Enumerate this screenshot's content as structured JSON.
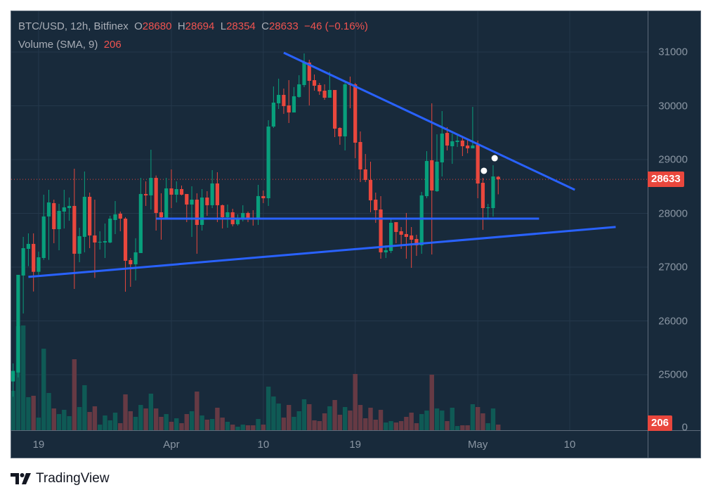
{
  "legend": {
    "symbol": "BTC/USD, 12h, Bitfinex",
    "open_label": "O",
    "open": "28680",
    "high_label": "H",
    "high": "28694",
    "low_label": "L",
    "low": "28354",
    "close_label": "C",
    "close": "28633",
    "change": "−46 (−0.16%)",
    "volume_label": "Volume (SMA, 9)",
    "volume_value": "206"
  },
  "last_price_badge": "28633",
  "volume_badge": "206",
  "branding": {
    "name": "TradingView",
    "icon": "tradingview-logo-icon"
  },
  "colors": {
    "background": "#182a3b",
    "up": "#089f7c",
    "down": "#e9473d",
    "volume_up": "#0f5a55",
    "volume_down": "#663a44",
    "trendline": "#2962ff",
    "grid": "#24384b"
  },
  "chart_data": {
    "type": "candlestick",
    "title": "BTC/USD, 12h, Bitfinex",
    "interval": "12h",
    "ylim": [
      24400,
      31400
    ],
    "grid": true,
    "y_ticks": [
      31000,
      30000,
      29000,
      28000,
      27000,
      26000,
      25000
    ],
    "y_tick_labels": [
      "31000",
      "30000",
      "29000",
      "28000",
      "27000",
      "26000",
      "25000"
    ],
    "volume_axis_label": "0",
    "x_ticks": [
      {
        "label": "19",
        "bar": 5
      },
      {
        "label": "Apr",
        "bar": 31
      },
      {
        "label": "10",
        "bar": 49
      },
      {
        "label": "19",
        "bar": 67
      },
      {
        "label": "May",
        "bar": 91
      },
      {
        "label": "10",
        "bar": 109
      }
    ],
    "columns": [
      "open",
      "high",
      "low",
      "close",
      "volume"
    ],
    "bars": [
      [
        24874,
        25210,
        24591,
        25070,
        638
      ],
      [
        25040,
        26857,
        24950,
        26857,
        1687
      ],
      [
        26844,
        27562,
        26138,
        27353,
        1699
      ],
      [
        27340,
        27628,
        27018,
        27432,
        536
      ],
      [
        27432,
        27628,
        26547,
        26913,
        559
      ],
      [
        26913,
        27288,
        26857,
        27183,
        205
      ],
      [
        27170,
        28347,
        27135,
        27942,
        1322
      ],
      [
        27942,
        28438,
        27135,
        28203,
        604
      ],
      [
        28190,
        28255,
        27445,
        27706,
        353
      ],
      [
        27706,
        28177,
        27314,
        28046,
        262
      ],
      [
        28033,
        28438,
        27719,
        28112,
        331
      ],
      [
        28098,
        28294,
        27863,
        28138,
        228
      ],
      [
        28138,
        28830,
        26595,
        27249,
        1151
      ],
      [
        27249,
        27732,
        27092,
        27576,
        376
      ],
      [
        27563,
        28778,
        27275,
        28308,
        730
      ],
      [
        28308,
        28386,
        27353,
        27589,
        296
      ],
      [
        27589,
        28255,
        26800,
        27458,
        388
      ],
      [
        27458,
        27667,
        27327,
        27471,
        91
      ],
      [
        27458,
        27811,
        27170,
        27484,
        239
      ],
      [
        27458,
        27955,
        27445,
        27902,
        160
      ],
      [
        27876,
        28229,
        27615,
        27981,
        285
      ],
      [
        27994,
        28033,
        27667,
        27902,
        114
      ],
      [
        27902,
        27929,
        26543,
        27118,
        581
      ],
      [
        27131,
        27170,
        26634,
        27053,
        308
      ],
      [
        27053,
        27537,
        26752,
        27275,
        217
      ],
      [
        27262,
        28660,
        27262,
        28360,
        410
      ],
      [
        28360,
        28595,
        28138,
        28334,
        353
      ],
      [
        28334,
        29183,
        28072,
        28660,
        593
      ],
      [
        28660,
        28704,
        27680,
        28007,
        353
      ],
      [
        28020,
        28373,
        27510,
        27928,
        217
      ],
      [
        27915,
        28660,
        27889,
        28464,
        262
      ],
      [
        28464,
        28817,
        28098,
        28347,
        137
      ],
      [
        28347,
        28595,
        28203,
        28451,
        194
      ],
      [
        28451,
        28517,
        28334,
        28347,
        114
      ],
      [
        28360,
        28360,
        27837,
        28164,
        262
      ],
      [
        28164,
        28503,
        27562,
        28255,
        308
      ],
      [
        28255,
        28373,
        27249,
        27785,
        627
      ],
      [
        27785,
        28451,
        27680,
        28294,
        239
      ],
      [
        28294,
        28412,
        27954,
        28151,
        171
      ],
      [
        28151,
        28804,
        28098,
        28556,
        182
      ],
      [
        28556,
        28765,
        27837,
        28151,
        365
      ],
      [
        28151,
        28164,
        27719,
        27928,
        205
      ],
      [
        27928,
        28164,
        27732,
        28020,
        137
      ],
      [
        28020,
        28085,
        27759,
        27798,
        91
      ],
      [
        27798,
        27981,
        27772,
        27889,
        57
      ],
      [
        27889,
        28151,
        27850,
        28007,
        91
      ],
      [
        28007,
        28033,
        27837,
        27889,
        80
      ],
      [
        27915,
        28059,
        27772,
        27889,
        80
      ],
      [
        27889,
        28530,
        27785,
        28321,
        182
      ],
      [
        28321,
        28425,
        28190,
        28281,
        91
      ],
      [
        28281,
        29732,
        28138,
        29614,
        707
      ],
      [
        29614,
        30360,
        29588,
        30059,
        547
      ],
      [
        30046,
        30504,
        29941,
        30203,
        433
      ],
      [
        30203,
        30320,
        29850,
        29994,
        205
      ],
      [
        30007,
        30477,
        29680,
        29876,
        410
      ],
      [
        29876,
        30347,
        29876,
        30177,
        217
      ],
      [
        30164,
        30569,
        30150,
        30399,
        308
      ],
      [
        30386,
        30974,
        30347,
        30804,
        502
      ],
      [
        30804,
        30856,
        30007,
        30464,
        422
      ],
      [
        30477,
        30582,
        30281,
        30373,
        160
      ],
      [
        30386,
        30425,
        30203,
        30268,
        148
      ],
      [
        30281,
        30399,
        30111,
        30150,
        274
      ],
      [
        30150,
        30634,
        30150,
        30294,
        388
      ],
      [
        30294,
        30294,
        29418,
        29575,
        490
      ],
      [
        29588,
        29601,
        29275,
        29431,
        251
      ],
      [
        29431,
        30425,
        29170,
        30399,
        376
      ],
      [
        30399,
        30543,
        29954,
        30386,
        319
      ],
      [
        30399,
        30425,
        29026,
        29314,
        912
      ],
      [
        29327,
        29523,
        28582,
        28817,
        410
      ],
      [
        28817,
        29104,
        28582,
        28621,
        194
      ],
      [
        28621,
        28961,
        28020,
        28242,
        365
      ],
      [
        28255,
        28386,
        27824,
        28059,
        171
      ],
      [
        28072,
        28320,
        27157,
        27275,
        331
      ],
      [
        27275,
        27406,
        27170,
        27314,
        125
      ],
      [
        27301,
        27889,
        27262,
        27824,
        148
      ],
      [
        27837,
        27837,
        27445,
        27654,
        125
      ],
      [
        27667,
        27745,
        27340,
        27602,
        148
      ],
      [
        27615,
        28007,
        27157,
        27562,
        217
      ],
      [
        27589,
        27745,
        26987,
        27510,
        285
      ],
      [
        27523,
        27601,
        27209,
        27405,
        114
      ],
      [
        27405,
        28399,
        27248,
        28333,
        262
      ],
      [
        28320,
        29157,
        28281,
        28974,
        319
      ],
      [
        28987,
        30046,
        27235,
        28425,
        901
      ],
      [
        28412,
        29470,
        28399,
        28961,
        353
      ],
      [
        28948,
        29902,
        28686,
        29483,
        319
      ],
      [
        29496,
        29601,
        29170,
        29261,
        148
      ],
      [
        29248,
        29483,
        28921,
        29340,
        365
      ],
      [
        29327,
        29470,
        29235,
        29353,
        68
      ],
      [
        29353,
        29418,
        29065,
        29248,
        80
      ],
      [
        29261,
        29366,
        29117,
        29209,
        80
      ],
      [
        29209,
        29980,
        29209,
        29261,
        422
      ],
      [
        29274,
        29353,
        28281,
        28555,
        376
      ],
      [
        28568,
        28660,
        27693,
        28098,
        274
      ],
      [
        28098,
        28176,
        27915,
        28111,
        114
      ],
      [
        28098,
        28895,
        27941,
        28686,
        353
      ],
      [
        28680,
        28694,
        28354,
        28633,
        91
      ]
    ],
    "last_price": 28633,
    "volume_sma_9": 206,
    "drawings": [
      {
        "name": "descending-trendline",
        "from": {
          "bar": 53,
          "price": 30987
        },
        "to": {
          "bar": 110,
          "price": 28438
        }
      },
      {
        "name": "ascending-trendline",
        "from": {
          "bar": 3,
          "price": 26818
        },
        "to": {
          "bar": 118,
          "price": 27746
        }
      },
      {
        "name": "horizontal-support-line",
        "from": {
          "bar": 28,
          "price": 27902
        },
        "to": {
          "bar": 103,
          "price": 27902
        }
      }
    ],
    "handles": [
      {
        "bar": 92.2,
        "price": 28791
      },
      {
        "bar": 94.3,
        "price": 29026
      }
    ]
  }
}
